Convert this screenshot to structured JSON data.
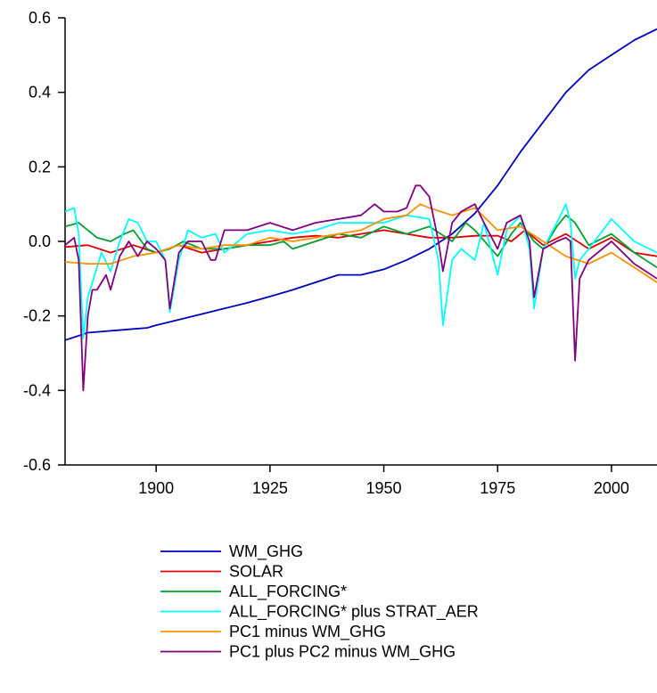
{
  "chart_data": {
    "type": "line",
    "title": "",
    "xlabel": "",
    "ylabel": "",
    "xlim": [
      1880,
      2010
    ],
    "ylim": [
      -0.6,
      0.6
    ],
    "x_ticks": [
      1900,
      1925,
      1950,
      1975,
      2000
    ],
    "x_tick_labels": [
      "1900",
      "1925",
      "1950",
      "1975",
      "2000"
    ],
    "y_ticks": [
      -0.6,
      -0.4,
      -0.2,
      0.0,
      0.2,
      0.4,
      0.6
    ],
    "y_tick_labels": [
      "-0.6",
      "-0.4",
      "-0.2",
      "0.0",
      "0.2",
      "0.4",
      "0.6"
    ],
    "grid": false,
    "legend_position": "bottom",
    "series": [
      {
        "name": "WM_GHG",
        "color": "#0000c0",
        "points": [
          [
            1880,
            -0.265
          ],
          [
            1885,
            -0.245
          ],
          [
            1890,
            -0.24
          ],
          [
            1895,
            -0.235
          ],
          [
            1898,
            -0.232
          ],
          [
            1900,
            -0.225
          ],
          [
            1905,
            -0.21
          ],
          [
            1910,
            -0.195
          ],
          [
            1915,
            -0.18
          ],
          [
            1920,
            -0.165
          ],
          [
            1925,
            -0.148
          ],
          [
            1930,
            -0.13
          ],
          [
            1935,
            -0.11
          ],
          [
            1940,
            -0.09
          ],
          [
            1945,
            -0.09
          ],
          [
            1950,
            -0.075
          ],
          [
            1955,
            -0.05
          ],
          [
            1960,
            -0.02
          ],
          [
            1965,
            0.02
          ],
          [
            1970,
            0.075
          ],
          [
            1975,
            0.15
          ],
          [
            1980,
            0.24
          ],
          [
            1985,
            0.32
          ],
          [
            1990,
            0.4
          ],
          [
            1995,
            0.46
          ],
          [
            2000,
            0.5
          ],
          [
            2005,
            0.54
          ],
          [
            2010,
            0.57
          ]
        ]
      },
      {
        "name": "SOLAR",
        "color": "#e00000",
        "points": [
          [
            1880,
            -0.015
          ],
          [
            1885,
            -0.01
          ],
          [
            1890,
            -0.03
          ],
          [
            1895,
            -0.01
          ],
          [
            1900,
            -0.03
          ],
          [
            1905,
            -0.01
          ],
          [
            1910,
            -0.03
          ],
          [
            1915,
            -0.02
          ],
          [
            1920,
            -0.01
          ],
          [
            1925,
            0.0
          ],
          [
            1930,
            0.01
          ],
          [
            1935,
            0.015
          ],
          [
            1940,
            0.01
          ],
          [
            1945,
            0.02
          ],
          [
            1950,
            0.03
          ],
          [
            1955,
            0.02
          ],
          [
            1960,
            0.01
          ],
          [
            1965,
            0.01
          ],
          [
            1970,
            0.015
          ],
          [
            1975,
            0.015
          ],
          [
            1978,
            0.0
          ],
          [
            1981,
            0.03
          ],
          [
            1985,
            -0.01
          ],
          [
            1990,
            0.02
          ],
          [
            1995,
            -0.02
          ],
          [
            2000,
            0.01
          ],
          [
            2005,
            -0.03
          ],
          [
            2010,
            -0.04
          ]
        ]
      },
      {
        "name": "ALL_FORCING*",
        "color": "#00a030",
        "points": [
          [
            1880,
            0.04
          ],
          [
            1883,
            0.05
          ],
          [
            1887,
            0.01
          ],
          [
            1890,
            0.0
          ],
          [
            1893,
            0.02
          ],
          [
            1895,
            0.03
          ],
          [
            1898,
            -0.02
          ],
          [
            1900,
            -0.03
          ],
          [
            1903,
            -0.02
          ],
          [
            1906,
            0.0
          ],
          [
            1910,
            -0.02
          ],
          [
            1915,
            -0.02
          ],
          [
            1920,
            -0.01
          ],
          [
            1925,
            -0.01
          ],
          [
            1928,
            0.0
          ],
          [
            1930,
            -0.02
          ],
          [
            1935,
            0.0
          ],
          [
            1940,
            0.02
          ],
          [
            1945,
            0.01
          ],
          [
            1950,
            0.04
          ],
          [
            1955,
            0.02
          ],
          [
            1960,
            0.04
          ],
          [
            1965,
            0.0
          ],
          [
            1968,
            0.05
          ],
          [
            1970,
            0.03
          ],
          [
            1975,
            -0.04
          ],
          [
            1978,
            0.02
          ],
          [
            1980,
            0.05
          ],
          [
            1983,
            0.0
          ],
          [
            1985,
            -0.02
          ],
          [
            1988,
            0.04
          ],
          [
            1990,
            0.07
          ],
          [
            1992,
            0.05
          ],
          [
            1995,
            -0.01
          ],
          [
            2000,
            0.02
          ],
          [
            2005,
            -0.03
          ],
          [
            2010,
            -0.07
          ]
        ]
      },
      {
        "name": "ALL_FORCING* plus STRAT_AER",
        "color": "#00ffff",
        "points": [
          [
            1880,
            0.08
          ],
          [
            1882,
            0.09
          ],
          [
            1883,
            0.02
          ],
          [
            1884,
            -0.26
          ],
          [
            1885,
            -0.15
          ],
          [
            1888,
            -0.03
          ],
          [
            1890,
            -0.08
          ],
          [
            1892,
            0.0
          ],
          [
            1894,
            0.06
          ],
          [
            1896,
            0.05
          ],
          [
            1898,
            0.0
          ],
          [
            1900,
            0.0
          ],
          [
            1902,
            -0.05
          ],
          [
            1903,
            -0.19
          ],
          [
            1905,
            -0.05
          ],
          [
            1907,
            0.03
          ],
          [
            1910,
            0.01
          ],
          [
            1913,
            0.02
          ],
          [
            1915,
            -0.03
          ],
          [
            1920,
            0.02
          ],
          [
            1925,
            0.03
          ],
          [
            1930,
            0.02
          ],
          [
            1935,
            0.03
          ],
          [
            1940,
            0.05
          ],
          [
            1945,
            0.05
          ],
          [
            1950,
            0.05
          ],
          [
            1955,
            0.07
          ],
          [
            1960,
            0.06
          ],
          [
            1962,
            -0.05
          ],
          [
            1963,
            -0.225
          ],
          [
            1965,
            -0.05
          ],
          [
            1967,
            -0.02
          ],
          [
            1970,
            -0.05
          ],
          [
            1972,
            0.05
          ],
          [
            1975,
            -0.09
          ],
          [
            1977,
            0.03
          ],
          [
            1980,
            0.07
          ],
          [
            1982,
            -0.02
          ],
          [
            1983,
            -0.18
          ],
          [
            1985,
            -0.02
          ],
          [
            1988,
            0.05
          ],
          [
            1990,
            0.1
          ],
          [
            1991,
            0.05
          ],
          [
            1992,
            -0.1
          ],
          [
            1993,
            -0.05
          ],
          [
            1995,
            -0.02
          ],
          [
            2000,
            0.06
          ],
          [
            2005,
            0.0
          ],
          [
            2010,
            -0.03
          ]
        ]
      },
      {
        "name": "PC1 minus WM_GHG",
        "color": "#ff9000",
        "points": [
          [
            1880,
            -0.055
          ],
          [
            1885,
            -0.06
          ],
          [
            1890,
            -0.06
          ],
          [
            1895,
            -0.04
          ],
          [
            1900,
            -0.03
          ],
          [
            1905,
            -0.01
          ],
          [
            1910,
            -0.02
          ],
          [
            1915,
            -0.01
          ],
          [
            1920,
            -0.01
          ],
          [
            1925,
            0.01
          ],
          [
            1930,
            0.0
          ],
          [
            1935,
            0.01
          ],
          [
            1940,
            0.02
          ],
          [
            1945,
            0.03
          ],
          [
            1950,
            0.06
          ],
          [
            1955,
            0.07
          ],
          [
            1958,
            0.1
          ],
          [
            1960,
            0.09
          ],
          [
            1965,
            0.07
          ],
          [
            1970,
            0.09
          ],
          [
            1975,
            0.03
          ],
          [
            1980,
            0.04
          ],
          [
            1985,
            0.0
          ],
          [
            1990,
            -0.04
          ],
          [
            1995,
            -0.06
          ],
          [
            2000,
            -0.03
          ],
          [
            2005,
            -0.07
          ],
          [
            2010,
            -0.11
          ]
        ]
      },
      {
        "name": "PC1 plus PC2 minus WM_GHG",
        "color": "#800080",
        "points": [
          [
            1880,
            -0.01
          ],
          [
            1882,
            0.01
          ],
          [
            1883,
            -0.05
          ],
          [
            1884,
            -0.4
          ],
          [
            1885,
            -0.2
          ],
          [
            1886,
            -0.13
          ],
          [
            1887,
            -0.13
          ],
          [
            1889,
            -0.09
          ],
          [
            1890,
            -0.13
          ],
          [
            1892,
            -0.04
          ],
          [
            1894,
            0.0
          ],
          [
            1896,
            -0.04
          ],
          [
            1898,
            0.0
          ],
          [
            1900,
            -0.02
          ],
          [
            1902,
            -0.05
          ],
          [
            1903,
            -0.18
          ],
          [
            1905,
            -0.03
          ],
          [
            1907,
            0.0
          ],
          [
            1910,
            0.0
          ],
          [
            1912,
            -0.05
          ],
          [
            1913,
            -0.05
          ],
          [
            1915,
            0.03
          ],
          [
            1920,
            0.03
          ],
          [
            1925,
            0.05
          ],
          [
            1930,
            0.03
          ],
          [
            1935,
            0.05
          ],
          [
            1940,
            0.06
          ],
          [
            1945,
            0.07
          ],
          [
            1948,
            0.1
          ],
          [
            1950,
            0.08
          ],
          [
            1953,
            0.08
          ],
          [
            1955,
            0.09
          ],
          [
            1957,
            0.15
          ],
          [
            1958,
            0.15
          ],
          [
            1960,
            0.12
          ],
          [
            1962,
            0.0
          ],
          [
            1963,
            -0.08
          ],
          [
            1965,
            0.05
          ],
          [
            1967,
            0.08
          ],
          [
            1970,
            0.1
          ],
          [
            1972,
            0.05
          ],
          [
            1975,
            -0.02
          ],
          [
            1977,
            0.05
          ],
          [
            1980,
            0.07
          ],
          [
            1982,
            0.0
          ],
          [
            1983,
            -0.15
          ],
          [
            1985,
            -0.02
          ],
          [
            1988,
            0.0
          ],
          [
            1990,
            0.01
          ],
          [
            1991,
            0.0
          ],
          [
            1992,
            -0.32
          ],
          [
            1993,
            -0.1
          ],
          [
            1995,
            -0.05
          ],
          [
            2000,
            0.0
          ],
          [
            2005,
            -0.06
          ],
          [
            2010,
            -0.1
          ]
        ]
      }
    ]
  }
}
